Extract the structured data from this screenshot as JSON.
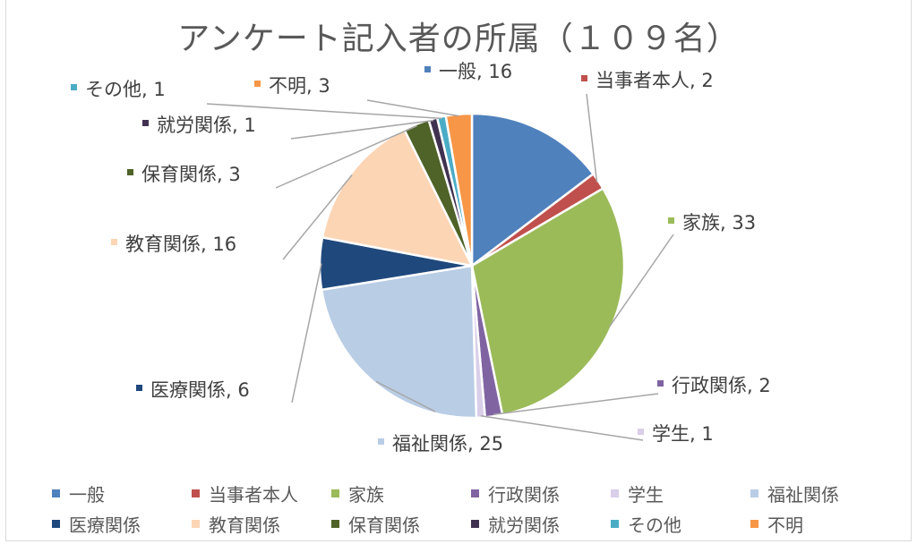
{
  "chart_data": {
    "type": "pie",
    "title": "アンケート記入者の所属（１０９名）",
    "slices": [
      {
        "label": "一般",
        "value": 16,
        "color": "#4f81bd"
      },
      {
        "label": "当事者本人",
        "value": 2,
        "color": "#c0504d"
      },
      {
        "label": "家族",
        "value": 33,
        "color": "#9bbb59"
      },
      {
        "label": "行政関係",
        "value": 2,
        "color": "#8064a2"
      },
      {
        "label": "学生",
        "value": 1,
        "color": "#d9cfe8"
      },
      {
        "label": "福祉関係",
        "value": 25,
        "color": "#b9cde5"
      },
      {
        "label": "医療関係",
        "value": 6,
        "color": "#1f497d"
      },
      {
        "label": "教育関係",
        "value": 16,
        "color": "#fcd5b5"
      },
      {
        "label": "保育関係",
        "value": 3,
        "color": "#4f6228"
      },
      {
        "label": "就労関係",
        "value": 1,
        "color": "#403151"
      },
      {
        "label": "その他",
        "value": 1,
        "color": "#4bacc6"
      },
      {
        "label": "不明",
        "value": 3,
        "color": "#f79646"
      }
    ],
    "legend_position": "bottom"
  }
}
